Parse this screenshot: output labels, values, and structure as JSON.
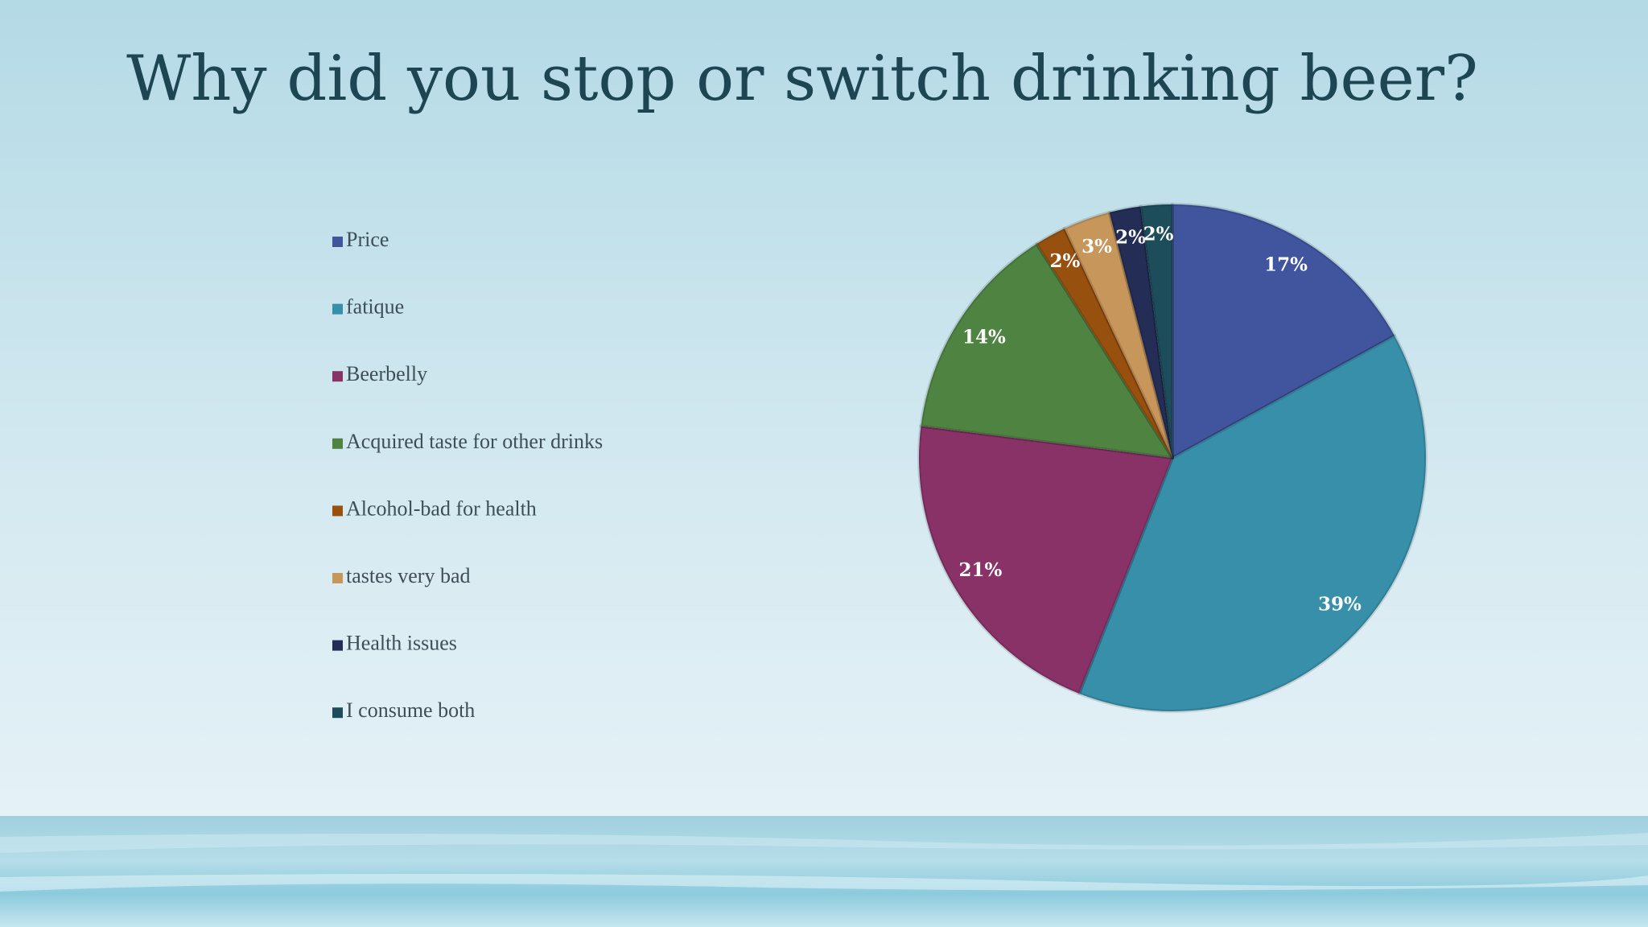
{
  "chart_data": {
    "type": "pie",
    "title": "Why did you stop or switch drinking beer?",
    "categories": [
      "Price",
      "fatique",
      "Beerbelly",
      "Acquired taste for other drinks",
      "Alcohol-bad for health",
      "tastes very bad",
      "Health issues",
      "I consume both"
    ],
    "values": [
      17,
      39,
      21,
      14,
      2,
      3,
      2,
      2
    ],
    "value_labels": [
      "17%",
      "39%",
      "21%",
      "14%",
      "2%",
      "3%",
      "2%",
      "2%"
    ],
    "colors": [
      "#41559e",
      "#378faa",
      "#883268",
      "#4f8342",
      "#98500f",
      "#c6965a",
      "#232d55",
      "#1d4d5a"
    ],
    "legend": "left"
  }
}
